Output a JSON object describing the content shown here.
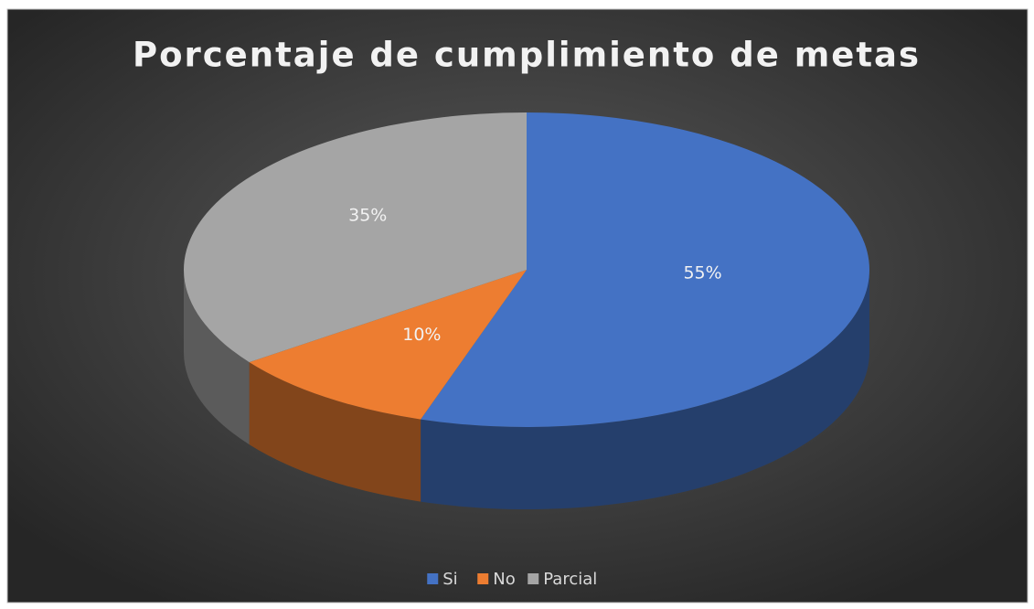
{
  "chart_data": {
    "type": "pie3d",
    "title": "Porcentaje de cumplimiento de metas",
    "categories": [
      "Si",
      "No",
      "Parcial"
    ],
    "values": [
      55,
      10,
      35
    ],
    "value_labels": [
      "55%",
      "10%",
      "35%"
    ],
    "colors": [
      "#4472c4",
      "#ed7d31",
      "#a5a5a5"
    ],
    "legend": "bottom"
  }
}
